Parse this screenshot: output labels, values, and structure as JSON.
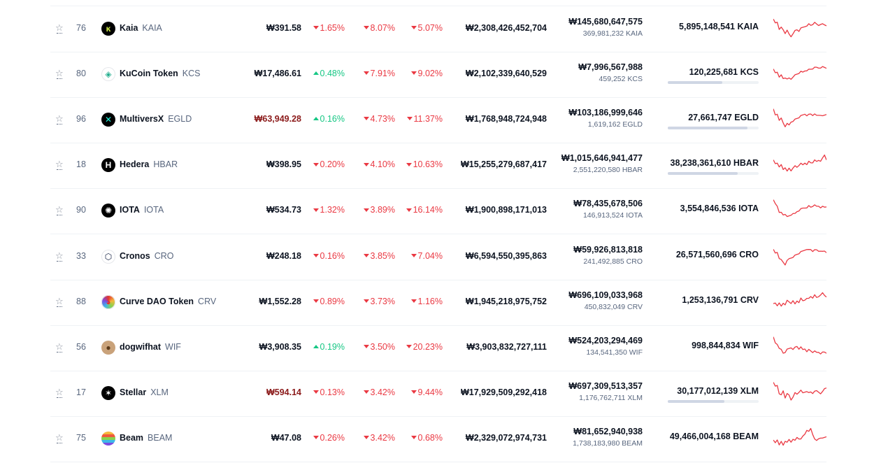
{
  "currency_symbol": "₩",
  "colors": {
    "down": "#ea3943",
    "up": "#16c784",
    "sparkline": "#ea3943",
    "text": "#0d1421",
    "muted": "#58667e"
  },
  "icons": {
    "watchlist": "star-outline-icon"
  },
  "rows": [
    {
      "rank": "76",
      "name": "Kaia",
      "symbol": "KAIA",
      "price": "₩391.58",
      "price_color": "#0d1421",
      "h1": "1.65%",
      "h1_dir": "down",
      "h24": "8.07%",
      "h24_dir": "down",
      "d7": "5.07%",
      "d7_dir": "down",
      "market_cap": "₩2,308,426,452,704",
      "volume": "₩145,680,647,575",
      "volume_coins": "369,981,232 KAIA",
      "supply": "5,895,148,541 KAIA",
      "supply_fraction": null,
      "logo": {
        "bg": "#000000",
        "fg": "#d3f04a",
        "glyph": "ĸ"
      },
      "spark": [
        0.1,
        0.25,
        0.2,
        0.5,
        0.45,
        0.55,
        0.7,
        0.6,
        0.75,
        0.85,
        0.7,
        0.6,
        0.55,
        0.6,
        0.5,
        0.45,
        0.4,
        0.35,
        0.3,
        0.35,
        0.3,
        0.25,
        0.3,
        0.35,
        0.28,
        0.3,
        0.33,
        0.35
      ]
    },
    {
      "rank": "80",
      "name": "KuCoin Token",
      "symbol": "KCS",
      "price": "₩17,486.61",
      "price_color": "#0d1421",
      "h1": "0.48%",
      "h1_dir": "up",
      "h24": "7.91%",
      "h24_dir": "down",
      "d7": "9.02%",
      "d7_dir": "down",
      "market_cap": "₩2,102,339,640,529",
      "volume": "₩7,996,567,988",
      "volume_coins": "459,252 KCS",
      "supply": "120,225,681 KCS",
      "supply_fraction": 0.6,
      "logo": {
        "bg": "#ffffff",
        "fg": "#24ae8f",
        "glyph": "◈"
      },
      "spark": [
        0.3,
        0.45,
        0.4,
        0.6,
        0.55,
        0.7,
        0.65,
        0.75,
        0.68,
        0.72,
        0.6,
        0.55,
        0.5,
        0.45,
        0.4,
        0.42,
        0.35,
        0.32,
        0.3,
        0.28,
        0.25,
        0.22,
        0.2,
        0.22,
        0.2,
        0.18,
        0.2,
        0.22
      ]
    },
    {
      "rank": "96",
      "name": "MultiversX",
      "symbol": "EGLD",
      "price": "₩63,949.28",
      "price_color": "#8b1a1a",
      "h1": "0.16%",
      "h1_dir": "up",
      "h24": "4.73%",
      "h24_dir": "down",
      "d7": "11.37%",
      "d7_dir": "down",
      "market_cap": "₩1,768,948,724,948",
      "volume": "₩103,186,999,646",
      "volume_coins": "1,619,162 EGLD",
      "supply": "27,661,747 EGLD",
      "supply_fraction": 0.88,
      "logo": {
        "bg": "#000000",
        "fg": "#23f7dd",
        "glyph": "✕"
      },
      "spark": [
        0.05,
        0.3,
        0.25,
        0.5,
        0.45,
        0.65,
        0.8,
        0.7,
        0.75,
        0.6,
        0.55,
        0.5,
        0.45,
        0.4,
        0.35,
        0.3,
        0.25,
        0.3,
        0.28,
        0.25,
        0.3,
        0.28,
        0.32,
        0.3,
        0.28,
        0.35,
        0.3,
        0.25
      ]
    },
    {
      "rank": "18",
      "name": "Hedera",
      "symbol": "HBAR",
      "price": "₩398.95",
      "price_color": "#0d1421",
      "h1": "0.20%",
      "h1_dir": "down",
      "h24": "4.10%",
      "h24_dir": "down",
      "d7": "10.63%",
      "d7_dir": "down",
      "market_cap": "₩15,255,279,687,417",
      "volume": "₩1,015,646,941,477",
      "volume_coins": "2,551,220,580 HBAR",
      "supply": "38,238,361,610 HBAR",
      "supply_fraction": 0.77,
      "logo": {
        "bg": "#000000",
        "fg": "#ffffff",
        "glyph": "H"
      },
      "spark": [
        0.3,
        0.45,
        0.4,
        0.55,
        0.5,
        0.7,
        0.6,
        0.8,
        0.65,
        0.75,
        0.6,
        0.55,
        0.6,
        0.5,
        0.45,
        0.5,
        0.4,
        0.45,
        0.35,
        0.4,
        0.38,
        0.3,
        0.35,
        0.28,
        0.3,
        0.2,
        0.05,
        0.25
      ]
    },
    {
      "rank": "90",
      "name": "IOTA",
      "symbol": "IOTA",
      "price": "₩534.73",
      "price_color": "#0d1421",
      "h1": "1.32%",
      "h1_dir": "down",
      "h24": "3.89%",
      "h24_dir": "down",
      "d7": "16.14%",
      "d7_dir": "down",
      "market_cap": "₩1,900,898,171,013",
      "volume": "₩78,435,678,506",
      "volume_coins": "146,913,524 IOTA",
      "supply": "3,554,846,536 IOTA",
      "supply_fraction": null,
      "logo": {
        "bg": "#000000",
        "fg": "#ffffff",
        "glyph": "✺"
      },
      "spark": [
        0.05,
        0.2,
        0.3,
        0.55,
        0.6,
        0.7,
        0.65,
        0.8,
        0.75,
        0.7,
        0.6,
        0.65,
        0.55,
        0.5,
        0.45,
        0.4,
        0.38,
        0.35,
        0.3,
        0.35,
        0.3,
        0.28,
        0.32,
        0.3,
        0.35,
        0.33,
        0.35,
        0.32
      ]
    },
    {
      "rank": "33",
      "name": "Cronos",
      "symbol": "CRO",
      "price": "₩248.18",
      "price_color": "#0d1421",
      "h1": "0.16%",
      "h1_dir": "down",
      "h24": "3.85%",
      "h24_dir": "down",
      "d7": "7.04%",
      "d7_dir": "down",
      "market_cap": "₩6,594,550,395,863",
      "volume": "₩59,926,813,818",
      "volume_coins": "241,492,885 CRO",
      "supply": "26,571,560,696 CRO",
      "supply_fraction": null,
      "logo": {
        "bg": "#ffffff",
        "fg": "#0d1b3e",
        "glyph": "⬡"
      },
      "spark": [
        0.2,
        0.35,
        0.3,
        0.55,
        0.65,
        0.75,
        0.85,
        0.7,
        0.6,
        0.55,
        0.5,
        0.45,
        0.4,
        0.35,
        0.3,
        0.25,
        0.2,
        0.15,
        0.2,
        0.18,
        0.25,
        0.22,
        0.2,
        0.25,
        0.22,
        0.28,
        0.25,
        0.3
      ]
    },
    {
      "rank": "88",
      "name": "Curve DAO Token",
      "symbol": "CRV",
      "price": "₩1,552.28",
      "price_color": "#0d1421",
      "h1": "0.89%",
      "h1_dir": "down",
      "h24": "3.73%",
      "h24_dir": "down",
      "d7": "1.16%",
      "d7_dir": "down",
      "market_cap": "₩1,945,218,975,752",
      "volume": "₩696,109,033,968",
      "volume_coins": "450,832,049 CRV",
      "supply": "1,253,136,791 CRV",
      "supply_fraction": null,
      "logo": {
        "bg": "#ffffff",
        "fg": "#e3342f",
        "glyph": "◕"
      },
      "spark": [
        0.6,
        0.55,
        0.65,
        0.5,
        0.7,
        0.55,
        0.6,
        0.45,
        0.5,
        0.55,
        0.4,
        0.6,
        0.45,
        0.5,
        0.35,
        0.45,
        0.4,
        0.3,
        0.35,
        0.25,
        0.3,
        0.2,
        0.3,
        0.25,
        0.15,
        0.1,
        0.2,
        0.25
      ]
    },
    {
      "rank": "56",
      "name": "dogwifhat",
      "symbol": "WIF",
      "price": "₩3,908.35",
      "price_color": "#0d1421",
      "h1": "0.19%",
      "h1_dir": "up",
      "h24": "3.50%",
      "h24_dir": "down",
      "d7": "20.23%",
      "d7_dir": "down",
      "market_cap": "₩3,903,832,727,111",
      "volume": "₩524,203,294,469",
      "volume_coins": "134,541,350 WIF",
      "supply": "998,844,834 WIF",
      "supply_fraction": null,
      "logo": {
        "bg": "#c9a27a",
        "fg": "#5b3a1a",
        "glyph": "●"
      },
      "spark": [
        0.05,
        0.3,
        0.35,
        0.5,
        0.6,
        0.75,
        0.7,
        0.6,
        0.55,
        0.5,
        0.55,
        0.5,
        0.45,
        0.55,
        0.5,
        0.6,
        0.55,
        0.65,
        0.6,
        0.65,
        0.7,
        0.68,
        0.72,
        0.7,
        0.75,
        0.72,
        0.7,
        0.73
      ]
    },
    {
      "rank": "17",
      "name": "Stellar",
      "symbol": "XLM",
      "price": "₩594.14",
      "price_color": "#8b1a1a",
      "h1": "0.13%",
      "h1_dir": "down",
      "h24": "3.42%",
      "h24_dir": "down",
      "d7": "9.44%",
      "d7_dir": "down",
      "market_cap": "₩17,929,509,292,418",
      "volume": "₩697,309,513,357",
      "volume_coins": "1,176,762,711 XLM",
      "supply": "30,177,012,139 XLM",
      "supply_fraction": 0.62,
      "logo": {
        "bg": "#000000",
        "fg": "#ffffff",
        "glyph": "✶"
      },
      "spark": [
        0.05,
        0.2,
        0.15,
        0.5,
        0.6,
        0.4,
        0.7,
        0.55,
        0.6,
        0.8,
        0.65,
        0.5,
        0.55,
        0.45,
        0.4,
        0.5,
        0.45,
        0.4,
        0.5,
        0.45,
        0.5,
        0.45,
        0.4,
        0.45,
        0.5,
        0.45,
        0.3,
        0.25
      ]
    },
    {
      "rank": "75",
      "name": "Beam",
      "symbol": "BEAM",
      "price": "₩47.08",
      "price_color": "#0d1421",
      "h1": "0.26%",
      "h1_dir": "down",
      "h24": "3.42%",
      "h24_dir": "down",
      "d7": "0.68%",
      "d7_dir": "down",
      "market_cap": "₩2,329,072,974,731",
      "volume": "₩81,652,940,938",
      "volume_coins": "1,738,183,980 BEAM",
      "supply": "49,466,004,168 BEAM",
      "supply_fraction": null,
      "logo": {
        "bg": "#3b82f6",
        "fg": "#ffffff",
        "glyph": ""
      },
      "spark": [
        0.6,
        0.7,
        0.55,
        0.75,
        0.65,
        0.8,
        0.6,
        0.7,
        0.55,
        0.65,
        0.5,
        0.6,
        0.45,
        0.5,
        0.55,
        0.4,
        0.3,
        0.1,
        0.2,
        0.05,
        0.3,
        0.55,
        0.6,
        0.5,
        0.45,
        0.5,
        0.45,
        0.4
      ]
    }
  ]
}
